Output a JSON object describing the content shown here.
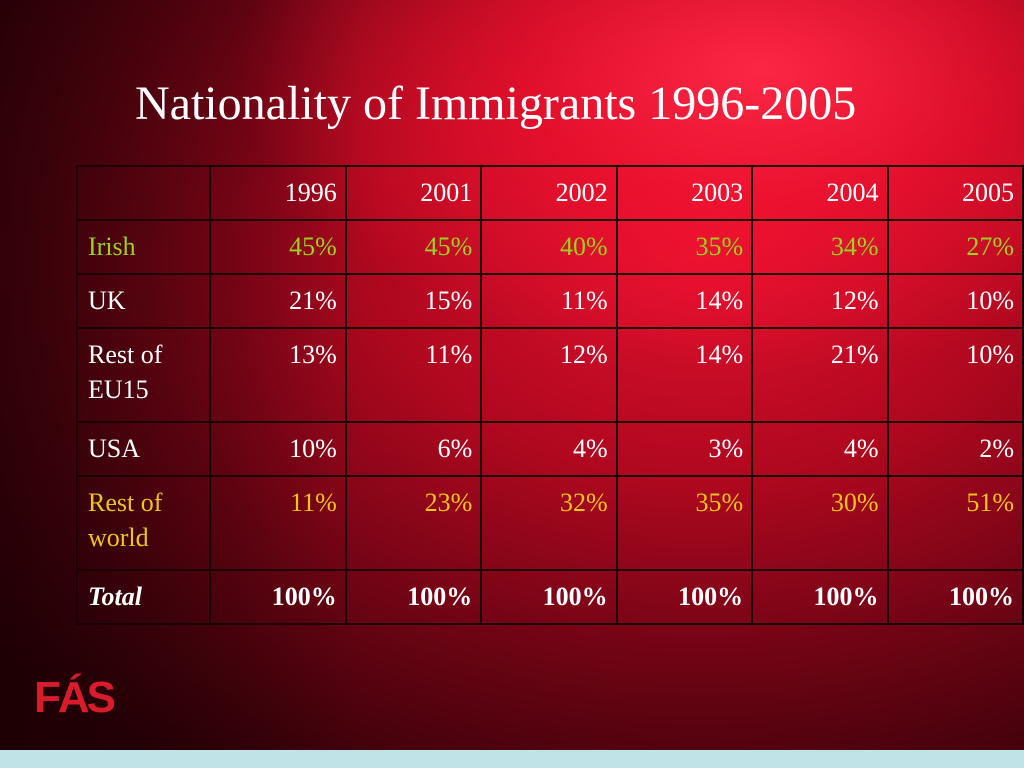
{
  "slide": {
    "title": "Nationality of Immigrants 1996-2005",
    "logo_text": "FÁS"
  },
  "table": {
    "years": [
      "1996",
      "2001",
      "2002",
      "2003",
      "2004",
      "2005"
    ],
    "rows": [
      {
        "label": "Irish",
        "values": [
          "45%",
          "45%",
          "40%",
          "35%",
          "34%",
          "27%"
        ]
      },
      {
        "label": "UK",
        "values": [
          "21%",
          "15%",
          "11%",
          "14%",
          "12%",
          "10%"
        ]
      },
      {
        "label": "Rest of EU15",
        "values": [
          "13%",
          "11%",
          "12%",
          "14%",
          "21%",
          "10%"
        ]
      },
      {
        "label": "USA",
        "values": [
          "10%",
          "6%",
          "4%",
          "3%",
          "4%",
          "2%"
        ]
      },
      {
        "label": "Rest of world",
        "values": [
          "11%",
          "23%",
          "32%",
          "35%",
          "30%",
          "51%"
        ]
      },
      {
        "label": "Total",
        "values": [
          "100%",
          "100%",
          "100%",
          "100%",
          "100%",
          "100%"
        ]
      }
    ]
  },
  "colors": {
    "background_red": "#b0081f",
    "irish_text": "#9bd21e",
    "rest_of_world_text": "#f0c419",
    "default_text": "#ffffff",
    "logo_red": "#d81c2c",
    "bottom_strip": "#bfe3e6"
  }
}
